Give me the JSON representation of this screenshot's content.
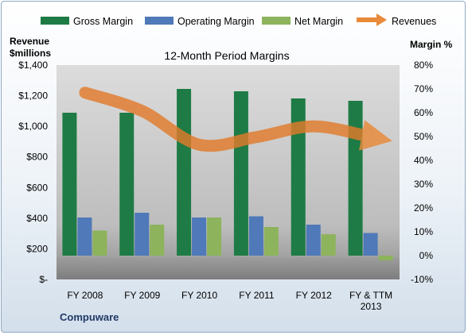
{
  "chart_data": {
    "type": "bar",
    "title": "12-Month Period Margins",
    "company_label": "Compuware",
    "categories": [
      "FY 2008",
      "FY 2009",
      "FY 2010",
      "FY 2011",
      "FY 2012",
      "FY & TTM 2013"
    ],
    "series": [
      {
        "name": "Gross Margin",
        "axis": "right",
        "kind": "bar",
        "color": "#1e7b45",
        "values": [
          60,
          60,
          70,
          69,
          66,
          65
        ]
      },
      {
        "name": "Operating Margin",
        "axis": "right",
        "kind": "bar",
        "color": "#4f79b8",
        "values": [
          16,
          18,
          16,
          16.5,
          13,
          9.5
        ]
      },
      {
        "name": "Net Margin",
        "axis": "right",
        "kind": "bar",
        "color": "#8db35c",
        "values": [
          10.5,
          13,
          16,
          12,
          9,
          -2
        ]
      },
      {
        "name": "Revenues",
        "axis": "left",
        "kind": "line",
        "color": "#e27b2c",
        "values": [
          1220,
          1100,
          880,
          930,
          1000,
          930
        ]
      }
    ],
    "y_left": {
      "label_line1": "Revenue",
      "label_line2": "$millions",
      "range": [
        0,
        1400
      ],
      "ticks": [
        0,
        200,
        400,
        600,
        800,
        1000,
        1200,
        1400
      ],
      "tick_labels": [
        "$-",
        "$200",
        "$400",
        "$600",
        "$800",
        "$1,000",
        "$1,200",
        "$1,400"
      ]
    },
    "y_right": {
      "label": "Margin %",
      "range": [
        -10,
        80
      ],
      "ticks": [
        -10,
        0,
        10,
        20,
        30,
        40,
        50,
        60,
        70,
        80
      ],
      "tick_labels": [
        "-10%",
        "0%",
        "10%",
        "20%",
        "30%",
        "40%",
        "50%",
        "60%",
        "70%",
        "80%"
      ]
    },
    "grid": false,
    "legend_position": "top"
  }
}
